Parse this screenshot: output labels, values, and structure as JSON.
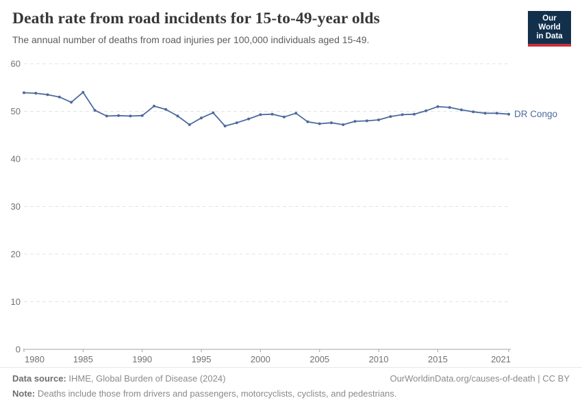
{
  "header": {
    "title": "Death rate from road incidents for 15-to-49-year olds",
    "subtitle": "The annual number of deaths from road injuries per 100,000 individuals aged 15-49.",
    "logo": {
      "line1": "Our World",
      "line2": "in Data",
      "bg_color": "#12304C",
      "accent_color": "#C9303C"
    }
  },
  "chart_data": {
    "type": "line",
    "title": "Death rate from road incidents for 15-to-49-year olds",
    "xlabel": "",
    "ylabel": "",
    "xlim": [
      1980,
      2021
    ],
    "ylim": [
      0,
      60
    ],
    "grid": "horizontal-dashed",
    "legend_position": "end-of-line-label",
    "xticks": [
      1980,
      1985,
      1990,
      1995,
      2000,
      2005,
      2010,
      2015,
      2021
    ],
    "yticks": [
      0,
      10,
      20,
      30,
      40,
      50,
      60
    ],
    "x": [
      1980,
      1981,
      1982,
      1983,
      1984,
      1985,
      1986,
      1987,
      1988,
      1989,
      1990,
      1991,
      1992,
      1993,
      1994,
      1995,
      1996,
      1997,
      1998,
      1999,
      2000,
      2001,
      2002,
      2003,
      2004,
      2005,
      2006,
      2007,
      2008,
      2009,
      2010,
      2011,
      2012,
      2013,
      2014,
      2015,
      2016,
      2017,
      2018,
      2019,
      2020,
      2021
    ],
    "series": [
      {
        "name": "DR Congo",
        "color": "#4C6A9C",
        "values": [
          53.9,
          53.8,
          53.5,
          53.0,
          51.9,
          54.0,
          50.2,
          49.0,
          49.1,
          49.0,
          49.1,
          51.1,
          50.4,
          49.0,
          47.2,
          48.6,
          49.7,
          46.9,
          47.6,
          48.4,
          49.3,
          49.4,
          48.8,
          49.6,
          47.8,
          47.4,
          47.6,
          47.2,
          47.9,
          48.0,
          48.2,
          48.9,
          49.3,
          49.4,
          50.1,
          51.0,
          50.8,
          50.3,
          49.9,
          49.6,
          49.6,
          49.4
        ]
      }
    ]
  },
  "footer": {
    "datasource_label": "Data source:",
    "datasource_text": " IHME, Global Burden of Disease (2024)",
    "link": "OurWorldinData.org/causes-of-death | CC BY",
    "note_label": "Note:",
    "note_text": " Deaths include those from drivers and passengers, motorcyclists, cyclists, and pedestrians."
  }
}
